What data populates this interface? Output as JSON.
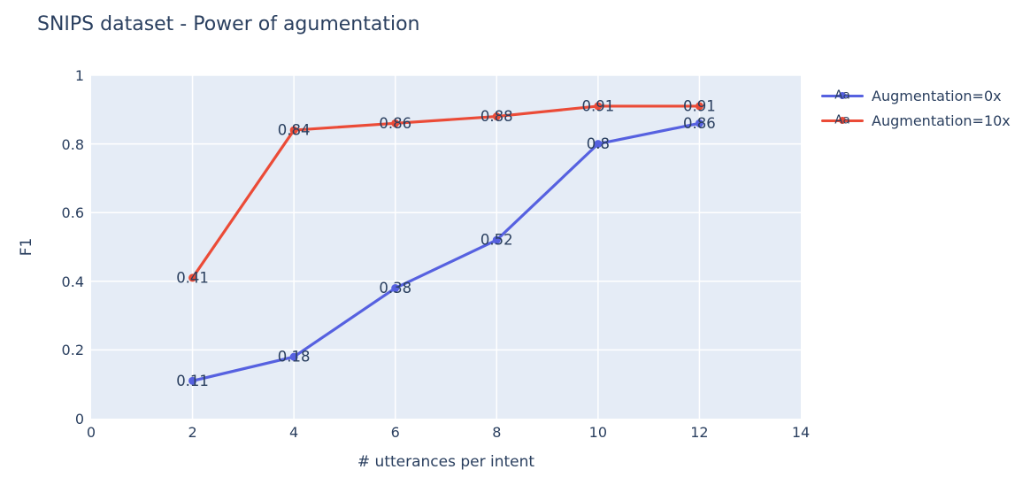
{
  "title": "SNIPS dataset - Power of agumentation",
  "colors": {
    "text": "#2a3f5f",
    "plot_background": "#e5ecf6",
    "gridline": "#ffffff",
    "series_0": "#5661e0",
    "series_1": "#eb4b37"
  },
  "legend": {
    "sample_text": "Aa"
  },
  "chart_data": {
    "type": "line",
    "title": "SNIPS dataset - Power of agumentation",
    "xlabel": "# utterances per intent",
    "ylabel": "F1",
    "xlim": [
      0,
      14
    ],
    "ylim": [
      0,
      1
    ],
    "grid": true,
    "legend_position": "right",
    "x_tick_labels": [
      "0",
      "2",
      "4",
      "6",
      "8",
      "10",
      "12",
      "14"
    ],
    "x_tick_values": [
      0,
      2,
      4,
      6,
      8,
      10,
      12,
      14
    ],
    "y_tick_labels": [
      "0",
      "0.2",
      "0.4",
      "0.6",
      "0.8",
      "1"
    ],
    "y_tick_values": [
      0,
      0.2,
      0.4,
      0.6,
      0.8,
      1
    ],
    "x": [
      2,
      4,
      6,
      8,
      10,
      12
    ],
    "series": [
      {
        "name": "Augmentation=0x",
        "color": "#5661e0",
        "values": [
          0.11,
          0.18,
          0.38,
          0.52,
          0.8,
          0.86
        ],
        "labels": [
          "0.11",
          "0.18",
          "0.38",
          "0.52",
          "0.8",
          "0.86"
        ]
      },
      {
        "name": "Augmentation=10x",
        "color": "#eb4b37",
        "values": [
          0.41,
          0.84,
          0.86,
          0.88,
          0.91,
          0.91
        ],
        "labels": [
          "0.41",
          "0.84",
          "0.86",
          "0.88",
          "0.91",
          "0.91"
        ]
      }
    ]
  }
}
